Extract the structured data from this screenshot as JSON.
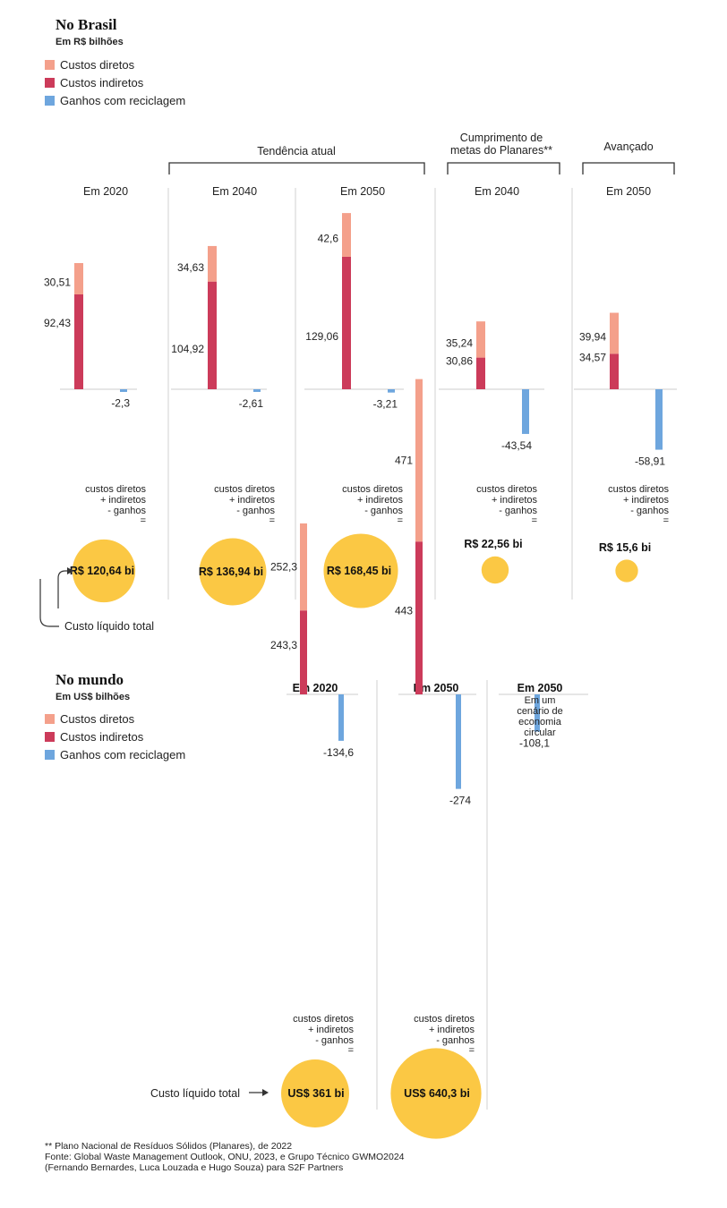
{
  "colors": {
    "direct": "#f4a08b",
    "indirect": "#cc3b5a",
    "gain": "#6ea6de",
    "bubble": "#fbc844",
    "separator": "#d0d0d0",
    "baseline": "#cccccc"
  },
  "legend": {
    "direct": "Custos diretos",
    "indirect": "Custos indiretos",
    "gain": "Ganhos com reciclagem"
  },
  "formula": [
    "custos diretos",
    "+ indiretos",
    "- ganhos",
    "="
  ],
  "brasil": {
    "title": "No Brasil",
    "unit": "Em R$ bilhões",
    "groups": [
      "Tendência atual",
      "Cumprimento de metas do Planares**",
      "Avançado"
    ],
    "groups_lines": [
      [
        "Tendência atual"
      ],
      [
        "Cumprimento de",
        "metas do Planares**"
      ],
      [
        "Avançado"
      ]
    ],
    "total_label": "Custo líquido total"
  },
  "mundo": {
    "title": "No mundo",
    "unit": "Em US$ bilhões",
    "total_label": "Custo líquido total",
    "scenario_note": "Em um cenário de economia circular",
    "scenario_note_lines": [
      "Em um",
      "cenário de",
      "economia",
      "circular"
    ]
  },
  "chart_data": [
    {
      "type": "bar",
      "title": "No Brasil",
      "ylabel": "Em R$ bilhões",
      "categories": [
        "Em 2020",
        "Em 2040",
        "Em 2050",
        "Em 2040",
        "Em 2050"
      ],
      "scenarios": [
        "",
        "Tendência atual",
        "Tendência atual",
        "Cumprimento de metas do Planares**",
        "Avançado"
      ],
      "series": [
        {
          "name": "Custos diretos",
          "values": [
            30.51,
            34.63,
            42.6,
            35.24,
            39.94
          ],
          "labels": [
            "30,51",
            "34,63",
            "42,6",
            "35,24",
            "39,94"
          ]
        },
        {
          "name": "Custos indiretos",
          "values": [
            92.43,
            104.92,
            129.06,
            30.86,
            34.57
          ],
          "labels": [
            "92,43",
            "104,92",
            "129,06",
            "30,86",
            "34,57"
          ]
        },
        {
          "name": "Ganhos com reciclagem",
          "values": [
            -2.3,
            -2.61,
            -3.21,
            -43.54,
            -58.91
          ],
          "labels": [
            "-2,3",
            "-2,61",
            "-3,21",
            "-43,54",
            "-58,91"
          ]
        }
      ],
      "net_total": {
        "values": [
          120.64,
          136.94,
          168.45,
          22.56,
          15.6
        ],
        "labels": [
          "R$ 120,64 bi",
          "R$ 136,94 bi",
          "R$ 168,45 bi",
          "R$ 22,56 bi",
          "R$ 15,6 bi"
        ]
      }
    },
    {
      "type": "bar",
      "title": "No mundo",
      "ylabel": "Em US$ bilhões",
      "categories": [
        "Em 2020",
        "Em 2050",
        "Em 2050"
      ],
      "series": [
        {
          "name": "Custos diretos",
          "values": [
            252.3,
            471,
            null
          ],
          "labels": [
            "252,3",
            "471",
            ""
          ]
        },
        {
          "name": "Custos indiretos",
          "values": [
            243.3,
            443,
            null
          ],
          "labels": [
            "243,3",
            "443",
            ""
          ]
        },
        {
          "name": "Ganhos com reciclagem",
          "values": [
            -134.6,
            -274,
            -108.1
          ],
          "labels": [
            "-134,6",
            "-274",
            "-108,1"
          ]
        }
      ],
      "net_total": {
        "values": [
          361,
          640.3,
          null
        ],
        "labels": [
          "US$ 361 bi",
          "US$ 640,3 bi",
          ""
        ]
      }
    }
  ],
  "footnotes": [
    "** Plano Nacional de Resíduos Sólidos (Planares), de 2022",
    "Fonte: Global Waste Management Outlook, ONU, 2023, e Grupo Técnico GWMO2024",
    "(Fernando Bernardes, Luca Louzada e Hugo Souza) para S2F Partners"
  ]
}
